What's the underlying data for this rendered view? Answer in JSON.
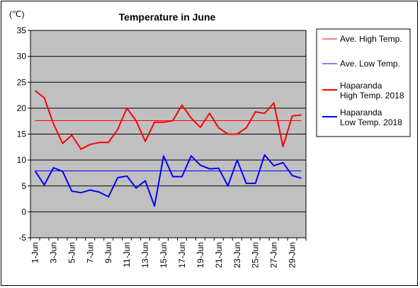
{
  "chart_data": {
    "type": "line",
    "title": "Temperature in June",
    "ylabel": "(℃)",
    "ylim": [
      -5,
      35
    ],
    "yticks": [
      35,
      30,
      25,
      20,
      15,
      10,
      5,
      0,
      -5
    ],
    "xtick_labels": [
      "1-Jun",
      "3-Jun",
      "5-Jun",
      "7-Jun",
      "9-Jun",
      "11-Jun",
      "13-Jun",
      "15-Jun",
      "17-Jun",
      "19-Jun",
      "21-Jun",
      "23-Jun",
      "25-Jun",
      "27-Jun",
      "29-Jun"
    ],
    "days": 30,
    "grid": true,
    "legend_position": "right",
    "series": [
      {
        "name": "Ave. High Temp.",
        "color": "#ff0000",
        "width": 1,
        "values": [
          17.6,
          17.6,
          17.6,
          17.6,
          17.6,
          17.6,
          17.6,
          17.6,
          17.6,
          17.6,
          17.6,
          17.6,
          17.6,
          17.6,
          17.6,
          17.6,
          17.6,
          17.6,
          17.6,
          17.6,
          17.6,
          17.6,
          17.6,
          17.6,
          17.6,
          17.6,
          17.6,
          17.6,
          17.6,
          17.6
        ]
      },
      {
        "name": "Ave. Low Temp.",
        "color": "#0000ff",
        "width": 1,
        "values": [
          7.9,
          7.9,
          7.9,
          7.9,
          7.9,
          7.9,
          7.9,
          7.9,
          7.9,
          7.9,
          7.9,
          7.9,
          7.9,
          7.9,
          7.9,
          7.9,
          7.9,
          7.9,
          7.9,
          7.9,
          7.9,
          7.9,
          7.9,
          7.9,
          7.9,
          7.9,
          7.9,
          7.9,
          7.9,
          7.9
        ]
      },
      {
        "name": "Haparanda\nHigh Temp. 2018",
        "color": "#ff0000",
        "width": 2,
        "values": [
          23.4,
          22.0,
          17.0,
          13.2,
          14.8,
          12.1,
          13.0,
          13.4,
          13.4,
          15.9,
          20.0,
          17.6,
          13.6,
          17.3,
          17.3,
          17.6,
          20.6,
          18.1,
          16.3,
          19.0,
          16.2,
          15.0,
          15.0,
          16.2,
          19.3,
          19.0,
          21.0,
          12.6,
          18.5,
          18.7
        ]
      },
      {
        "name": "Haparanda\nLow Temp. 2018",
        "color": "#0000ff",
        "width": 2,
        "values": [
          7.9,
          5.2,
          8.5,
          7.8,
          4.0,
          3.7,
          4.2,
          3.8,
          2.9,
          6.6,
          6.9,
          4.6,
          6.0,
          1.1,
          10.8,
          6.8,
          6.8,
          10.8,
          9.0,
          8.3,
          8.4,
          5.0,
          10.0,
          5.5,
          5.5,
          11.0,
          8.9,
          9.5,
          7.0,
          6.5
        ]
      }
    ]
  }
}
